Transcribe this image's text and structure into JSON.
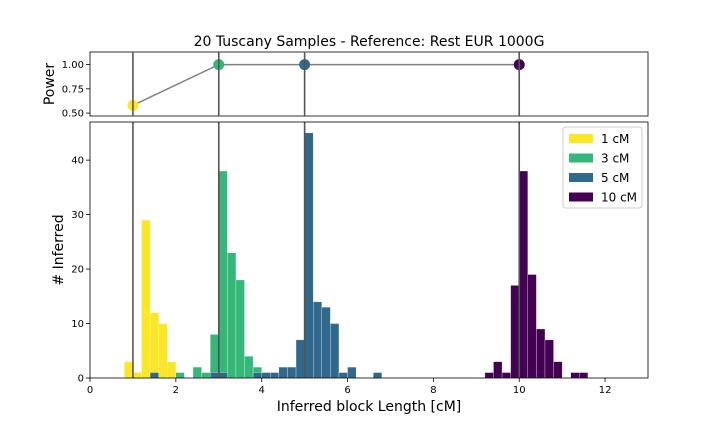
{
  "chart_data": [
    {
      "type": "line",
      "title": "20 Tuscany Samples - Reference: Rest EUR 1000G",
      "ylabel": "Power",
      "xlabel": "",
      "x": [
        1,
        3,
        5,
        10
      ],
      "y": [
        0.58,
        1.0,
        1.0,
        1.0
      ],
      "point_colors": [
        "#fde725",
        "#35b779",
        "#31688e",
        "#440154"
      ],
      "line_color": "#808080",
      "xlim": [
        0,
        13
      ],
      "ylim": [
        0.47,
        1.13
      ],
      "yticks": [
        0.5,
        0.75,
        1.0
      ],
      "ytick_labels": [
        "0.50",
        "0.75",
        "1.00"
      ]
    },
    {
      "type": "bar",
      "subtype": "histogram",
      "xlabel": "Inferred block Length [cM]",
      "ylabel": "# Inferred",
      "xlim": [
        0,
        13
      ],
      "ylim": [
        0,
        47
      ],
      "xticks": [
        0,
        2,
        4,
        6,
        8,
        10,
        12
      ],
      "yticks": [
        0,
        10,
        20,
        30,
        40
      ],
      "bin_width": 0.2,
      "vlines": [
        1,
        3,
        5,
        10
      ],
      "legend": {
        "position": "top-right",
        "entries": [
          "1 cM",
          "3 cM",
          "5 cM",
          "10 cM"
        ]
      },
      "series": [
        {
          "name": "1 cM",
          "color": "#fde725",
          "bins": [
            [
              0.8,
              3
            ],
            [
              1.0,
              1
            ],
            [
              1.2,
              29
            ],
            [
              1.4,
              12
            ],
            [
              1.6,
              10
            ],
            [
              1.8,
              3
            ],
            [
              2.0,
              1
            ]
          ]
        },
        {
          "name": "3 cM",
          "color": "#35b779",
          "bins": [
            [
              1.4,
              1
            ],
            [
              2.0,
              1
            ],
            [
              2.2,
              0
            ],
            [
              2.4,
              2
            ],
            [
              2.6,
              1
            ],
            [
              2.8,
              8
            ],
            [
              3.0,
              38
            ],
            [
              3.2,
              23
            ],
            [
              3.4,
              18
            ],
            [
              3.6,
              4
            ],
            [
              3.8,
              2
            ],
            [
              4.0,
              1
            ],
            [
              4.2,
              1
            ]
          ]
        },
        {
          "name": "5 cM",
          "color": "#31688e",
          "bins": [
            [
              1.4,
              1
            ],
            [
              2.8,
              1
            ],
            [
              3.0,
              1
            ],
            [
              3.8,
              1
            ],
            [
              4.0,
              1
            ],
            [
              4.2,
              1
            ],
            [
              4.4,
              2
            ],
            [
              4.6,
              2
            ],
            [
              4.8,
              7
            ],
            [
              5.0,
              45
            ],
            [
              5.2,
              14
            ],
            [
              5.4,
              13
            ],
            [
              5.6,
              10
            ],
            [
              5.8,
              1
            ],
            [
              6.0,
              2
            ],
            [
              6.6,
              1
            ]
          ]
        },
        {
          "name": "10 cM",
          "color": "#440154",
          "bins": [
            [
              9.2,
              1
            ],
            [
              9.4,
              3
            ],
            [
              9.6,
              1
            ],
            [
              9.8,
              17
            ],
            [
              10.0,
              38
            ],
            [
              10.2,
              19
            ],
            [
              10.4,
              9
            ],
            [
              10.6,
              7
            ],
            [
              10.8,
              3
            ],
            [
              11.0,
              0
            ],
            [
              11.2,
              1
            ],
            [
              11.4,
              1
            ]
          ]
        }
      ]
    }
  ]
}
